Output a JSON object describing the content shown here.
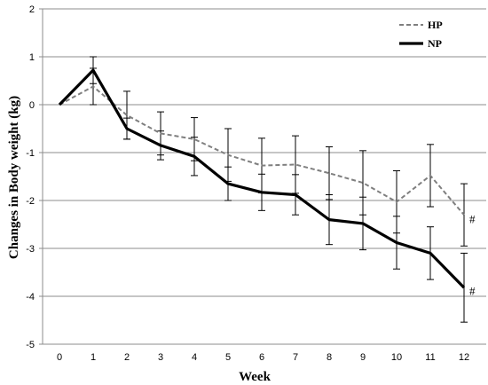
{
  "chart_data": {
    "type": "line",
    "xlabel": "Week",
    "ylabel": "Changes in Body weight (kg)",
    "x": [
      0,
      1,
      2,
      3,
      4,
      5,
      6,
      7,
      8,
      9,
      10,
      11,
      12
    ],
    "xlim": [
      0,
      12
    ],
    "ylim": [
      -5,
      2
    ],
    "yticks": [
      2,
      1,
      0,
      -1,
      -2,
      -3,
      -4,
      -5
    ],
    "grid": "horizontal",
    "legend_position": "top-right",
    "series": [
      {
        "name": "HP",
        "style": "dashed",
        "color": "#7f7f7f",
        "values": [
          0,
          0.38,
          -0.22,
          -0.6,
          -0.72,
          -1.05,
          -1.27,
          -1.25,
          -1.43,
          -1.63,
          -2.03,
          -1.48,
          -2.3
        ],
        "error": [
          0,
          0.38,
          0.5,
          0.45,
          0.45,
          0.55,
          0.57,
          0.6,
          0.55,
          0.67,
          0.65,
          0.65,
          0.65
        ]
      },
      {
        "name": "NP",
        "style": "solid",
        "color": "#000000",
        "values": [
          0,
          0.72,
          -0.5,
          -0.85,
          -1.08,
          -1.65,
          -1.83,
          -1.88,
          -2.4,
          -2.48,
          -2.88,
          -3.1,
          -3.82
        ],
        "error": [
          0,
          0.28,
          0.22,
          0.3,
          0.4,
          0.35,
          0.38,
          0.42,
          0.52,
          0.55,
          0.55,
          0.55,
          0.72
        ]
      }
    ],
    "annotations": [
      {
        "text": "#",
        "x": 12,
        "y": -2.4
      },
      {
        "text": "#",
        "x": 12,
        "y": -3.9
      }
    ]
  }
}
